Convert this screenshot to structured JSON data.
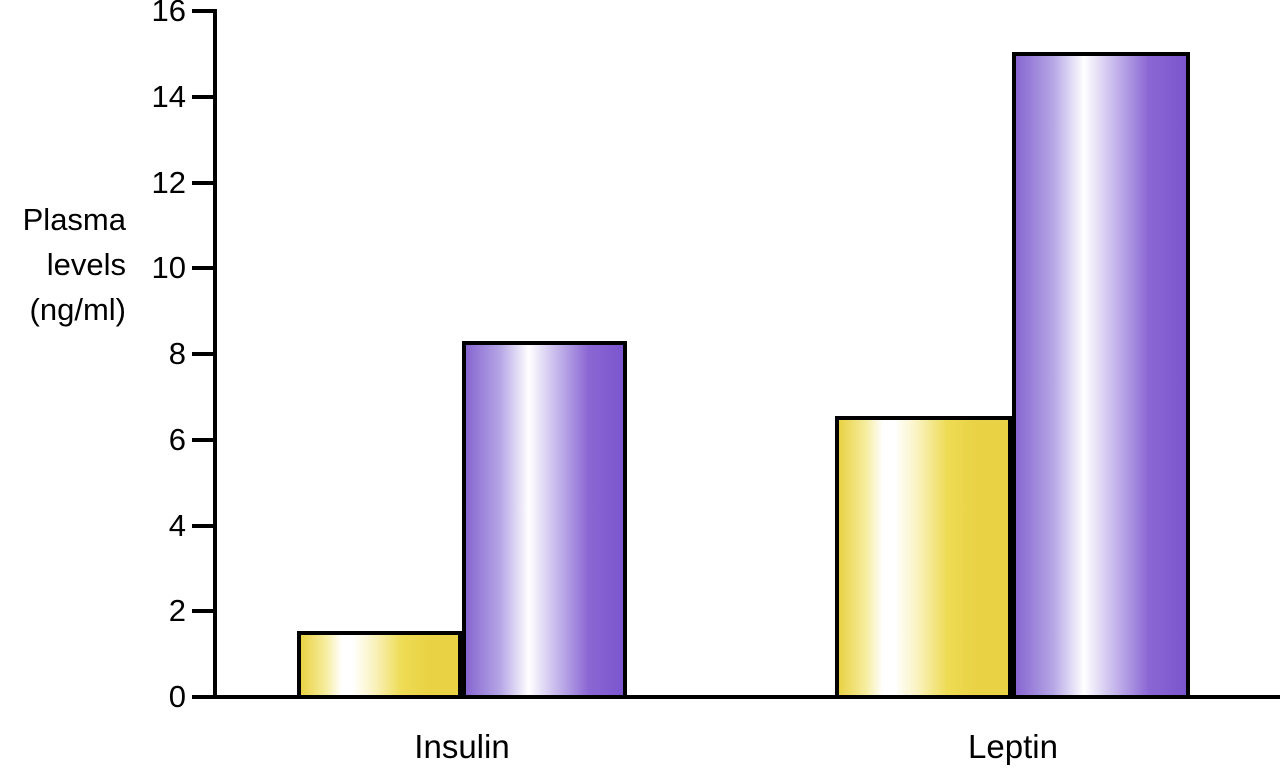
{
  "figure": {
    "background_color": "#ffffff",
    "axis_color": "#000000",
    "text_color": "#000000"
  },
  "chart_data": {
    "type": "bar",
    "title": "",
    "xlabel": "",
    "ylabel": "Plasma levels (ng/ml)",
    "ylabel_lines": [
      "Plasma",
      "levels",
      "(ng/ml)"
    ],
    "categories": [
      "Insulin",
      "Leptin"
    ],
    "series": [
      {
        "name": "yellow-bars",
        "edge_color": "#e9d243",
        "highlight_color": "#ffffff",
        "values": [
          1.5,
          6.5
        ]
      },
      {
        "name": "purple-bars",
        "edge_color": "#8766d0",
        "edge_color_dark": "#7b55cd",
        "highlight_color": "#ffffff",
        "values": [
          8.25,
          15
        ]
      }
    ],
    "ylim": [
      0,
      16
    ],
    "yticks": [
      0,
      2,
      4,
      6,
      8,
      10,
      12,
      14,
      16
    ],
    "grid": false,
    "legend_position": "none"
  }
}
